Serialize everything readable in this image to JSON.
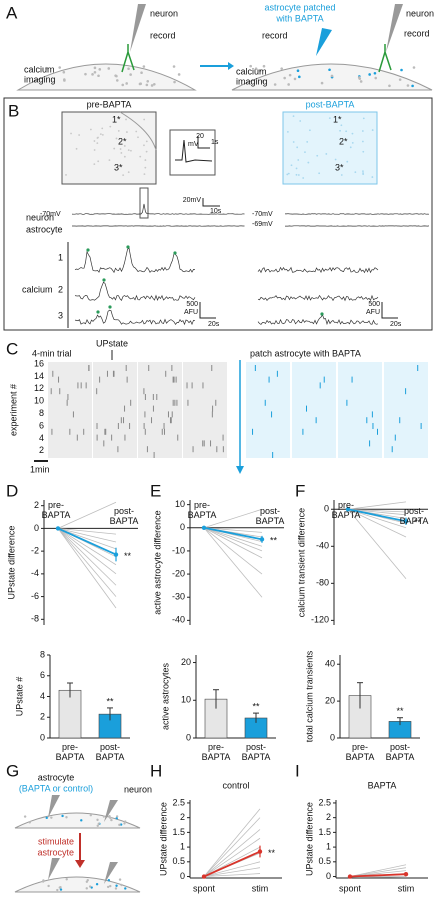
{
  "panel_a": {
    "label": "A",
    "neuron": "neuron",
    "record": "record",
    "imaging": [
      "calcium",
      "imaging"
    ],
    "patched": [
      "astrocyte patched",
      "with BAPTA"
    ],
    "neuron_post": "neuron",
    "record_neuron": "record",
    "record_astro": "record",
    "imaging_post": [
      "calcium",
      "imaging"
    ]
  },
  "panel_b": {
    "label": "B",
    "pre": "pre-BAPTA",
    "post": "post-BAPTA",
    "cells_pre": [
      "1*",
      "2*",
      "3*"
    ],
    "cells_post": [
      "1*",
      "2*",
      "3*"
    ],
    "inset_scale": [
      "20",
      "mV",
      "1s"
    ],
    "neuron_scale": [
      "20mV",
      "10s"
    ],
    "neuron": "neuron",
    "astrocyte": "astrocyte",
    "vm_pre": "-70mV",
    "vm_post": [
      "-70mV",
      "-69mV"
    ],
    "cells": [
      "1",
      "2",
      "3"
    ],
    "calcium": "calcium",
    "afu_pre": [
      "500",
      "AFU",
      "20s"
    ],
    "afu_post": [
      "500",
      "AFU",
      "20s"
    ]
  },
  "panel_c": {
    "label": "C",
    "trial": "4-min trial",
    "upstate": "UPstate",
    "patch": "patch astrocyte with BAPTA",
    "ylabel": "experiment #",
    "yticks": [
      16,
      14,
      12,
      10,
      8,
      6,
      4,
      2
    ],
    "scale": "1min"
  },
  "panel_g": {
    "label": "G",
    "astrocyte": "astrocyte",
    "condition": "(BAPTA or control)",
    "neuron": "neuron",
    "stimulate": [
      "stimulate",
      "astrocyte"
    ]
  },
  "chart_data": [
    {
      "type": "line",
      "panel": "D",
      "ylabel": "UPstate difference",
      "categories": [
        "pre-BAPTA",
        "post-BAPTA"
      ],
      "ylim": [
        -8.5,
        2.5
      ],
      "yticks": [
        2,
        0,
        -2,
        -4,
        -6,
        -8
      ],
      "series": [
        {
          "color": "#bdbdbd",
          "values": [
            0,
            2.3
          ]
        },
        {
          "color": "#bdbdbd",
          "values": [
            0,
            -0.5
          ]
        },
        {
          "color": "#bdbdbd",
          "values": [
            0,
            -1.2
          ]
        },
        {
          "color": "#bdbdbd",
          "values": [
            0,
            -1.8
          ]
        },
        {
          "color": "#bdbdbd",
          "values": [
            0,
            -2.5
          ]
        },
        {
          "color": "#bdbdbd",
          "values": [
            0,
            -3.2
          ]
        },
        {
          "color": "#bdbdbd",
          "values": [
            0,
            -4
          ]
        },
        {
          "color": "#bdbdbd",
          "values": [
            0,
            -5
          ]
        },
        {
          "color": "#bdbdbd",
          "values": [
            0,
            -6
          ]
        },
        {
          "color": "#bdbdbd",
          "values": [
            0,
            -7
          ]
        },
        {
          "color": "#1a9fdb",
          "values": [
            0,
            -2.3
          ],
          "errors": [
            0,
            0.6
          ]
        }
      ],
      "annotation": "**"
    },
    {
      "type": "bar",
      "ylabel": "UPstate #",
      "categories": [
        "pre-BAPTA",
        "post-BAPTA"
      ],
      "values": [
        4.6,
        2.3
      ],
      "errors": [
        0.7,
        0.6
      ],
      "colors": [
        "#e6e6e6",
        "#1a9fdb"
      ],
      "ylim": [
        0,
        8
      ],
      "yticks": [
        0,
        2,
        4,
        6,
        8
      ],
      "annotation": "**"
    },
    {
      "type": "line",
      "panel": "E",
      "ylabel": "active astrocyte difference",
      "categories": [
        "pre-BAPTA",
        "post-BAPTA"
      ],
      "ylim": [
        -42,
        12
      ],
      "yticks": [
        10,
        0,
        -10,
        -20,
        -30,
        -40
      ],
      "series": [
        {
          "color": "#bdbdbd",
          "values": [
            0,
            8
          ]
        },
        {
          "color": "#bdbdbd",
          "values": [
            0,
            -2
          ]
        },
        {
          "color": "#bdbdbd",
          "values": [
            0,
            -4
          ]
        },
        {
          "color": "#bdbdbd",
          "values": [
            0,
            -6
          ]
        },
        {
          "color": "#bdbdbd",
          "values": [
            0,
            -8
          ]
        },
        {
          "color": "#bdbdbd",
          "values": [
            0,
            -10
          ]
        },
        {
          "color": "#bdbdbd",
          "values": [
            0,
            -13
          ]
        },
        {
          "color": "#bdbdbd",
          "values": [
            0,
            -20
          ]
        },
        {
          "color": "#bdbdbd",
          "values": [
            0,
            -30
          ]
        },
        {
          "color": "#1a9fdb",
          "values": [
            0,
            -5
          ],
          "errors": [
            0,
            1.5
          ]
        }
      ],
      "annotation": "**"
    },
    {
      "type": "bar",
      "ylabel": "active astrocytes",
      "categories": [
        "pre-BAPTA",
        "post-BAPTA"
      ],
      "values": [
        10.3,
        5.3
      ],
      "errors": [
        2.5,
        1.3
      ],
      "colors": [
        "#e6e6e6",
        "#1a9fdb"
      ],
      "ylim": [
        0,
        22
      ],
      "yticks": [
        0,
        10,
        20
      ],
      "annotation": "**"
    },
    {
      "type": "line",
      "panel": "F",
      "ylabel": "calcium transient difference",
      "categories": [
        "pre-BAPTA",
        "post-BAPTA"
      ],
      "ylim": [
        -125,
        10
      ],
      "yticks": [
        0,
        -40,
        -80,
        -120
      ],
      "series": [
        {
          "color": "#bdbdbd",
          "values": [
            0,
            8
          ]
        },
        {
          "color": "#bdbdbd",
          "values": [
            0,
            -3
          ]
        },
        {
          "color": "#bdbdbd",
          "values": [
            0,
            -6
          ]
        },
        {
          "color": "#bdbdbd",
          "values": [
            0,
            -10
          ]
        },
        {
          "color": "#bdbdbd",
          "values": [
            0,
            -15
          ]
        },
        {
          "color": "#bdbdbd",
          "values": [
            0,
            -20
          ]
        },
        {
          "color": "#bdbdbd",
          "values": [
            0,
            -30
          ]
        },
        {
          "color": "#bdbdbd",
          "values": [
            0,
            -75
          ]
        },
        {
          "color": "#1a9fdb",
          "values": [
            0,
            -13
          ],
          "errors": [
            0,
            4
          ]
        }
      ],
      "annotation": "**"
    },
    {
      "type": "bar",
      "ylabel": "total calcium transients",
      "categories": [
        "pre-BAPTA",
        "post-BAPTA"
      ],
      "values": [
        23,
        9
      ],
      "errors": [
        7,
        2
      ],
      "colors": [
        "#e6e6e6",
        "#1a9fdb"
      ],
      "ylim": [
        0,
        45
      ],
      "yticks": [
        0,
        20,
        40
      ],
      "annotation": "**"
    },
    {
      "type": "line",
      "panel": "H",
      "title": "control",
      "ylabel": "UPstate difference",
      "categories": [
        "spont",
        "stim"
      ],
      "ylim": [
        -0.05,
        2.6
      ],
      "yticks": [
        0,
        0.5,
        1,
        1.5,
        2,
        2.5
      ],
      "series": [
        {
          "color": "#bdbdbd",
          "values": [
            0,
            2.3
          ]
        },
        {
          "color": "#bdbdbd",
          "values": [
            0,
            2
          ]
        },
        {
          "color": "#bdbdbd",
          "values": [
            0,
            1.6
          ]
        },
        {
          "color": "#bdbdbd",
          "values": [
            0,
            1.3
          ]
        },
        {
          "color": "#bdbdbd",
          "values": [
            0,
            1
          ]
        },
        {
          "color": "#bdbdbd",
          "values": [
            0,
            0.8
          ]
        },
        {
          "color": "#bdbdbd",
          "values": [
            0,
            0.5
          ]
        },
        {
          "color": "#bdbdbd",
          "values": [
            0,
            0.3
          ]
        },
        {
          "color": "#bdbdbd",
          "values": [
            0,
            0.1
          ]
        },
        {
          "color": "#d9342b",
          "values": [
            0,
            0.85
          ],
          "errors": [
            0,
            0.2
          ]
        }
      ],
      "annotation": "**"
    },
    {
      "type": "line",
      "panel": "I",
      "title": "BAPTA",
      "ylabel": "UPstate difference",
      "categories": [
        "spont",
        "stim"
      ],
      "ylim": [
        -0.05,
        2.6
      ],
      "yticks": [
        0,
        0.5,
        1,
        1.5,
        2,
        2.5
      ],
      "series": [
        {
          "color": "#bdbdbd",
          "values": [
            0,
            0.4
          ]
        },
        {
          "color": "#bdbdbd",
          "values": [
            0,
            0.3
          ]
        },
        {
          "color": "#bdbdbd",
          "values": [
            0,
            0.2
          ]
        },
        {
          "color": "#bdbdbd",
          "values": [
            0,
            0.1
          ]
        },
        {
          "color": "#bdbdbd",
          "values": [
            0,
            0
          ]
        },
        {
          "color": "#bdbdbd",
          "values": [
            0,
            -0.03
          ]
        },
        {
          "color": "#d9342b",
          "values": [
            0,
            0.08
          ],
          "errors": [
            0,
            0.05
          ]
        }
      ]
    }
  ]
}
